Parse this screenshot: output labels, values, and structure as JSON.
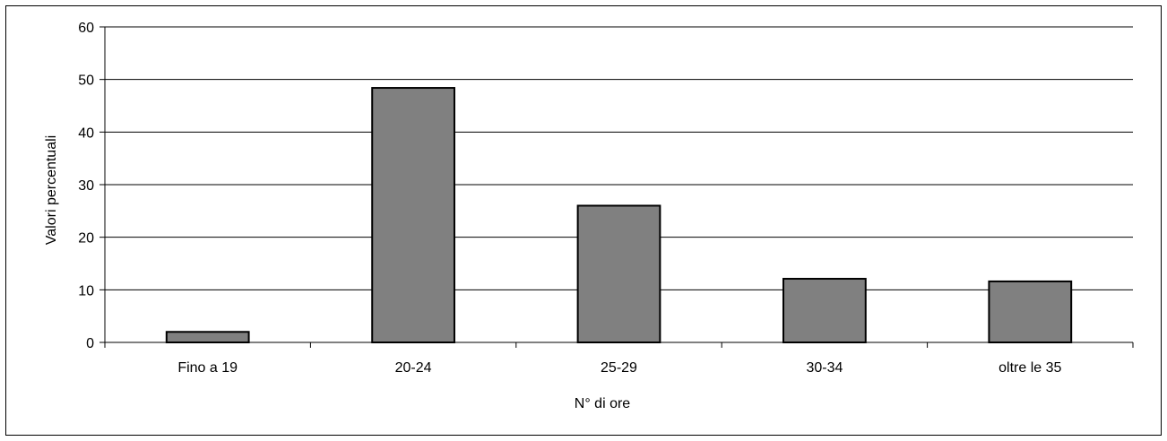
{
  "chart_data": {
    "type": "bar",
    "categories": [
      "Fino a 19",
      "20-24",
      "25-29",
      "30-34",
      "oltre le 35"
    ],
    "values": [
      2.0,
      48.4,
      26.0,
      12.1,
      11.6
    ],
    "xlabel": "N° di ore",
    "ylabel": "Valori percentuali",
    "ylim": [
      0,
      60
    ],
    "yticks": [
      0,
      10,
      20,
      30,
      40,
      50,
      60
    ],
    "grid": true,
    "legend": "none",
    "colors": {
      "bar": "#808080",
      "bar_stroke": "#000000",
      "grid": "#000000",
      "background": "#ffffff"
    }
  }
}
